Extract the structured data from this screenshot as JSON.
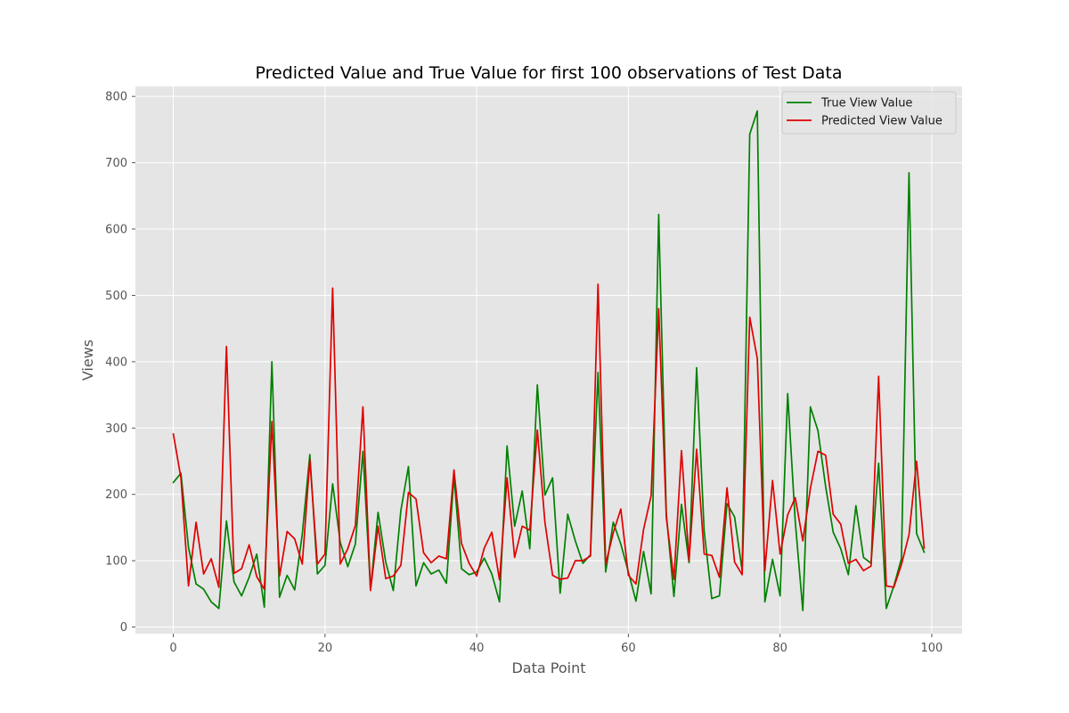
{
  "chart_data": {
    "type": "line",
    "title": "Predicted Value and True Value for first 100 observations of Test Data",
    "xlabel": "Data Point",
    "ylabel": "Views",
    "xlim": [
      -5,
      104
    ],
    "ylim": [
      -10,
      815
    ],
    "xticks": [
      0,
      20,
      40,
      60,
      80,
      100
    ],
    "yticks": [
      0,
      100,
      200,
      300,
      400,
      500,
      600,
      700,
      800
    ],
    "grid": true,
    "legend_position": "top-right",
    "x": [
      0,
      1,
      2,
      3,
      4,
      5,
      6,
      7,
      8,
      9,
      10,
      11,
      12,
      13,
      14,
      15,
      16,
      17,
      18,
      19,
      20,
      21,
      22,
      23,
      24,
      25,
      26,
      27,
      28,
      29,
      30,
      31,
      32,
      33,
      34,
      35,
      36,
      37,
      38,
      39,
      40,
      41,
      42,
      43,
      44,
      45,
      46,
      47,
      48,
      49,
      50,
      51,
      52,
      53,
      54,
      55,
      56,
      57,
      58,
      59,
      60,
      61,
      62,
      63,
      64,
      65,
      66,
      67,
      68,
      69,
      70,
      71,
      72,
      73,
      74,
      75,
      76,
      77,
      78,
      79,
      80,
      81,
      82,
      83,
      84,
      85,
      86,
      87,
      88,
      89,
      90,
      91,
      92,
      93,
      94,
      95,
      96,
      97,
      98,
      99
    ],
    "series": [
      {
        "name": "True View Value",
        "color": "#008000",
        "values": [
          218,
          232,
          120,
          65,
          57,
          38,
          28,
          160,
          68,
          47,
          75,
          110,
          30,
          400,
          45,
          78,
          56,
          140,
          260,
          80,
          93,
          216,
          128,
          91,
          125,
          265,
          57,
          173,
          98,
          55,
          176,
          242,
          62,
          97,
          80,
          86,
          66,
          227,
          88,
          79,
          83,
          104,
          80,
          38,
          273,
          152,
          205,
          118,
          365,
          199,
          225,
          51,
          170,
          130,
          96,
          109,
          384,
          83,
          158,
          125,
          83,
          39,
          114,
          50,
          622,
          170,
          46,
          185,
          97,
          391,
          144,
          43,
          47,
          186,
          166,
          85,
          743,
          778,
          38,
          102,
          47,
          352,
          159,
          25,
          332,
          296,
          212,
          143,
          118,
          79,
          183,
          105,
          96,
          247,
          28,
          62,
          103,
          685,
          141,
          113
        ]
      },
      {
        "name": "Predicted View Value",
        "color": "#e00000",
        "values": [
          291,
          225,
          62,
          158,
          80,
          103,
          60,
          423,
          81,
          88,
          124,
          76,
          57,
          310,
          77,
          144,
          133,
          95,
          252,
          95,
          110,
          511,
          95,
          118,
          153,
          332,
          55,
          152,
          73,
          77,
          93,
          203,
          193,
          112,
          97,
          107,
          103,
          237,
          126,
          96,
          77,
          119,
          143,
          71,
          225,
          105,
          152,
          146,
          297,
          158,
          78,
          72,
          74,
          100,
          100,
          107,
          517,
          95,
          142,
          178,
          78,
          65,
          147,
          198,
          480,
          165,
          72,
          266,
          100,
          268,
          110,
          108,
          75,
          210,
          98,
          79,
          467,
          405,
          85,
          221,
          110,
          169,
          195,
          130,
          209,
          265,
          259,
          170,
          155,
          96,
          102,
          85,
          92,
          378,
          62,
          60,
          94,
          139,
          250,
          119
        ]
      }
    ]
  }
}
